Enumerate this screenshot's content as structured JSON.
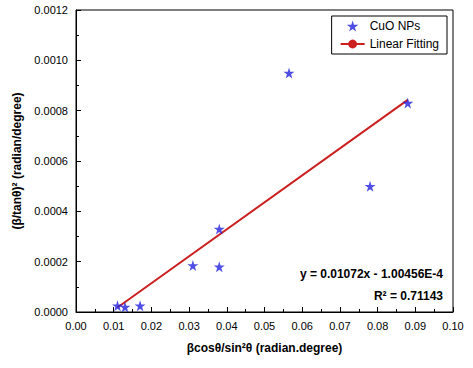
{
  "chart_data": {
    "type": "scatter",
    "x_label": "βcosθ/sin²θ (radian.degree)",
    "y_label": "(β/tanθ)² (radian/degree)",
    "xlim": [
      0,
      0.1
    ],
    "ylim": [
      0,
      0.0012
    ],
    "xticks": [
      {
        "value": 0,
        "label": "0.00"
      },
      {
        "value": 0.01,
        "label": "0.01"
      },
      {
        "value": 0.02,
        "label": "0.02"
      },
      {
        "value": 0.03,
        "label": "0.03"
      },
      {
        "value": 0.04,
        "label": "0.04"
      },
      {
        "value": 0.05,
        "label": "0.05"
      },
      {
        "value": 0.06,
        "label": "0.06"
      },
      {
        "value": 0.07,
        "label": "0.07"
      },
      {
        "value": 0.08,
        "label": "0.08"
      },
      {
        "value": 0.09,
        "label": "0.09"
      },
      {
        "value": 0.1,
        "label": "0.10"
      }
    ],
    "yticks": [
      {
        "value": 0,
        "label": "0.0000"
      },
      {
        "value": 0.0002,
        "label": "0.0002"
      },
      {
        "value": 0.0004,
        "label": "0.0004"
      },
      {
        "value": 0.0006,
        "label": "0.0006"
      },
      {
        "value": 0.0008,
        "label": "0.0008"
      },
      {
        "value": 0.001,
        "label": "0.0010"
      },
      {
        "value": 0.0012,
        "label": "0.0012"
      }
    ],
    "grid": false,
    "legend": "upper right",
    "series": [
      {
        "name": "CuO NPs",
        "type": "scatter",
        "marker": "star",
        "color": "#2222dd",
        "x": [
          0.011,
          0.013,
          0.017,
          0.031,
          0.038,
          0.038,
          0.0565,
          0.078,
          0.088
        ],
        "values": [
          2.5e-05,
          2e-05,
          2.5e-05,
          0.000185,
          0.00033,
          0.00018,
          0.00095,
          0.0005,
          0.00083
        ]
      },
      {
        "name": "Linear Fitting",
        "type": "line",
        "line_style": "solid",
        "color": "#cc2020",
        "x": [
          0.011,
          0.088
        ],
        "values": [
          1.8e-05,
          0.000843
        ]
      }
    ],
    "annotations": [
      "y = 0.01072x - 1.00456E-4",
      "R² = 0.71143"
    ]
  }
}
